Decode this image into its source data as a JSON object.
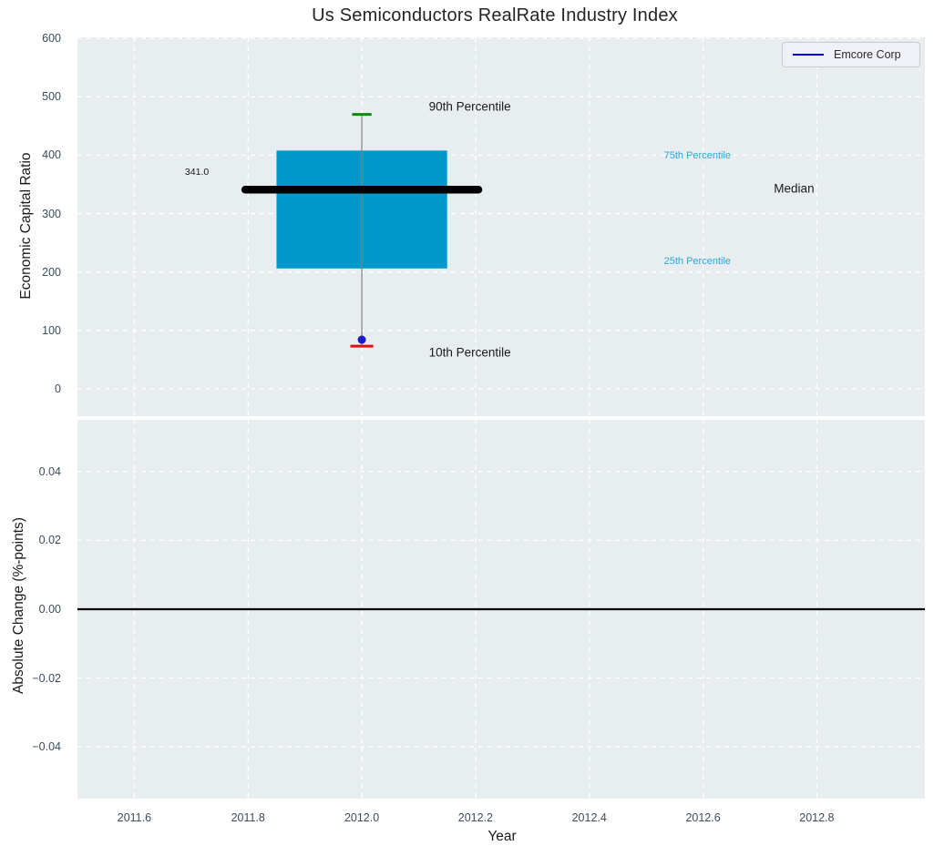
{
  "title": "Us Semiconductors RealRate Industry Index",
  "legend": {
    "label": "Emcore Corp"
  },
  "colors": {
    "plot_bg": "#e8edf0",
    "grid": "#ffffff",
    "box_fill": "#0099cc",
    "median_line": "#000000",
    "whisker": "#808080",
    "cap_90th": "#078a07",
    "cap_10th": "#e01010",
    "company_dot": "#1a1acd",
    "legend_line": "#0000ee",
    "tick_text": "#3b4d5f",
    "percentile_text": "#2aa7da",
    "zero_line": "#000000"
  },
  "chart_data": [
    {
      "type": "boxplot",
      "title": "Us Semiconductors RealRate Industry Index",
      "ylabel": "Economic Capital Ratio",
      "ylim": [
        -47,
        602
      ],
      "yticks": [
        600,
        500,
        400,
        300,
        200,
        100,
        0
      ],
      "ytick_labels": [
        "600",
        "500",
        "400",
        "300",
        "200",
        "100",
        "0"
      ],
      "xlim": [
        2011.5,
        2012.99
      ],
      "xticks": [
        2011.6,
        2011.8,
        2012.0,
        2012.2,
        2012.4,
        2012.6,
        2012.8
      ],
      "grid": "white dashed, on",
      "legend_position": "upper right",
      "box": {
        "name": "industry-distribution",
        "x_center": 2012.0,
        "box_left": 2011.85,
        "box_right": 2012.15,
        "p10": 73,
        "p25": 206,
        "median": 341.0,
        "p75": 408,
        "p90": 470,
        "median_line_left": 2011.795,
        "median_line_right": 2012.205,
        "cap_halfwidth": 0.017
      },
      "company_point": {
        "name": "Emcore Corp",
        "x": 2012.0,
        "y": 84
      },
      "annotations": [
        {
          "text": "90th Percentile",
          "x": 2012.19,
          "y": 483,
          "style": "black-md"
        },
        {
          "text": "10th Percentile",
          "x": 2012.19,
          "y": 62,
          "style": "black-md"
        },
        {
          "text": "Median",
          "x": 2012.76,
          "y": 343,
          "style": "black-md"
        },
        {
          "text": "75th Percentile",
          "x": 2012.59,
          "y": 399,
          "style": "cyan-sm"
        },
        {
          "text": "25th Percentile",
          "x": 2012.59,
          "y": 218,
          "style": "cyan-sm"
        },
        {
          "text": "341.0",
          "x": 2011.71,
          "y": 371,
          "style": "black-xs"
        }
      ]
    },
    {
      "type": "line",
      "ylabel": "Absolute Change (%-points)",
      "xlabel": "Year",
      "ylim": [
        -0.055,
        0.055
      ],
      "yticks": [
        0.04,
        0.02,
        0.0,
        -0.02,
        -0.04
      ],
      "ytick_labels": [
        "0.04",
        "0.02",
        "0.00",
        "−0.02",
        "−0.04"
      ],
      "xlim": [
        2011.5,
        2012.99
      ],
      "xticks": [
        2011.6,
        2011.8,
        2012.0,
        2012.2,
        2012.4,
        2012.6,
        2012.8
      ],
      "xtick_labels": [
        "2011.6",
        "2011.8",
        "2012.0",
        "2012.2",
        "2012.4",
        "2012.6",
        "2012.8"
      ],
      "grid": "white dashed, on",
      "zero_line_y": 0.0,
      "series": []
    }
  ]
}
